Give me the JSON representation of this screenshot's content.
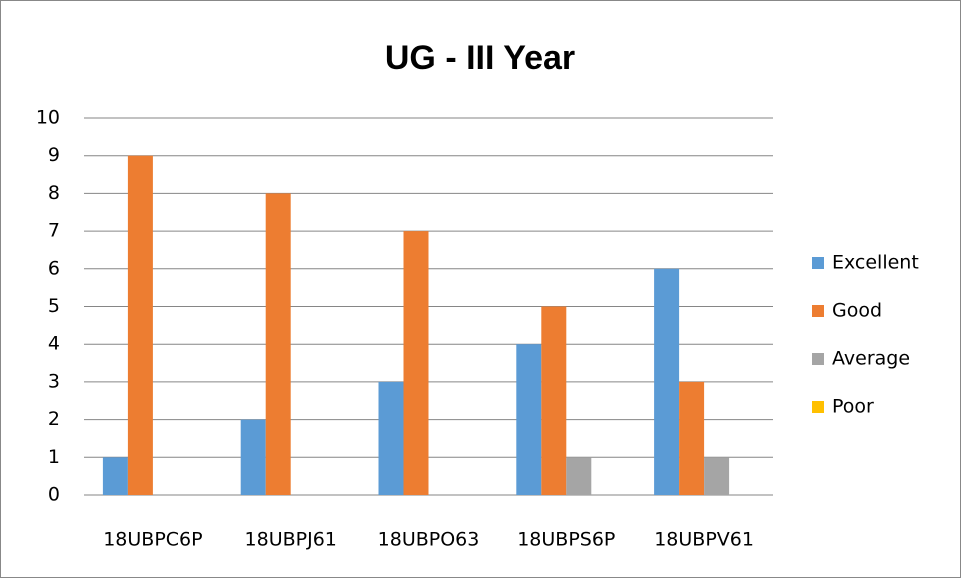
{
  "chart_data": {
    "type": "bar",
    "title": "UG - III Year",
    "categories": [
      "18UBPC6P",
      "18UBPJ61",
      "18UBPO63",
      "18UBPS6P",
      "18UBPV61"
    ],
    "series": [
      {
        "name": "Excellent",
        "color": "#5b9bd5",
        "values": [
          1,
          2,
          3,
          4,
          6
        ]
      },
      {
        "name": "Good",
        "color": "#ed7d31",
        "values": [
          9,
          8,
          7,
          5,
          3
        ]
      },
      {
        "name": "Average",
        "color": "#a5a5a5",
        "values": [
          0,
          0,
          0,
          1,
          1
        ]
      },
      {
        "name": "Poor",
        "color": "#ffc000",
        "values": [
          0,
          0,
          0,
          0,
          0
        ]
      }
    ],
    "ylim": [
      0,
      10
    ],
    "yticks": [
      0,
      1,
      2,
      3,
      4,
      5,
      6,
      7,
      8,
      9,
      10
    ],
    "grid": true,
    "legend": "right"
  }
}
